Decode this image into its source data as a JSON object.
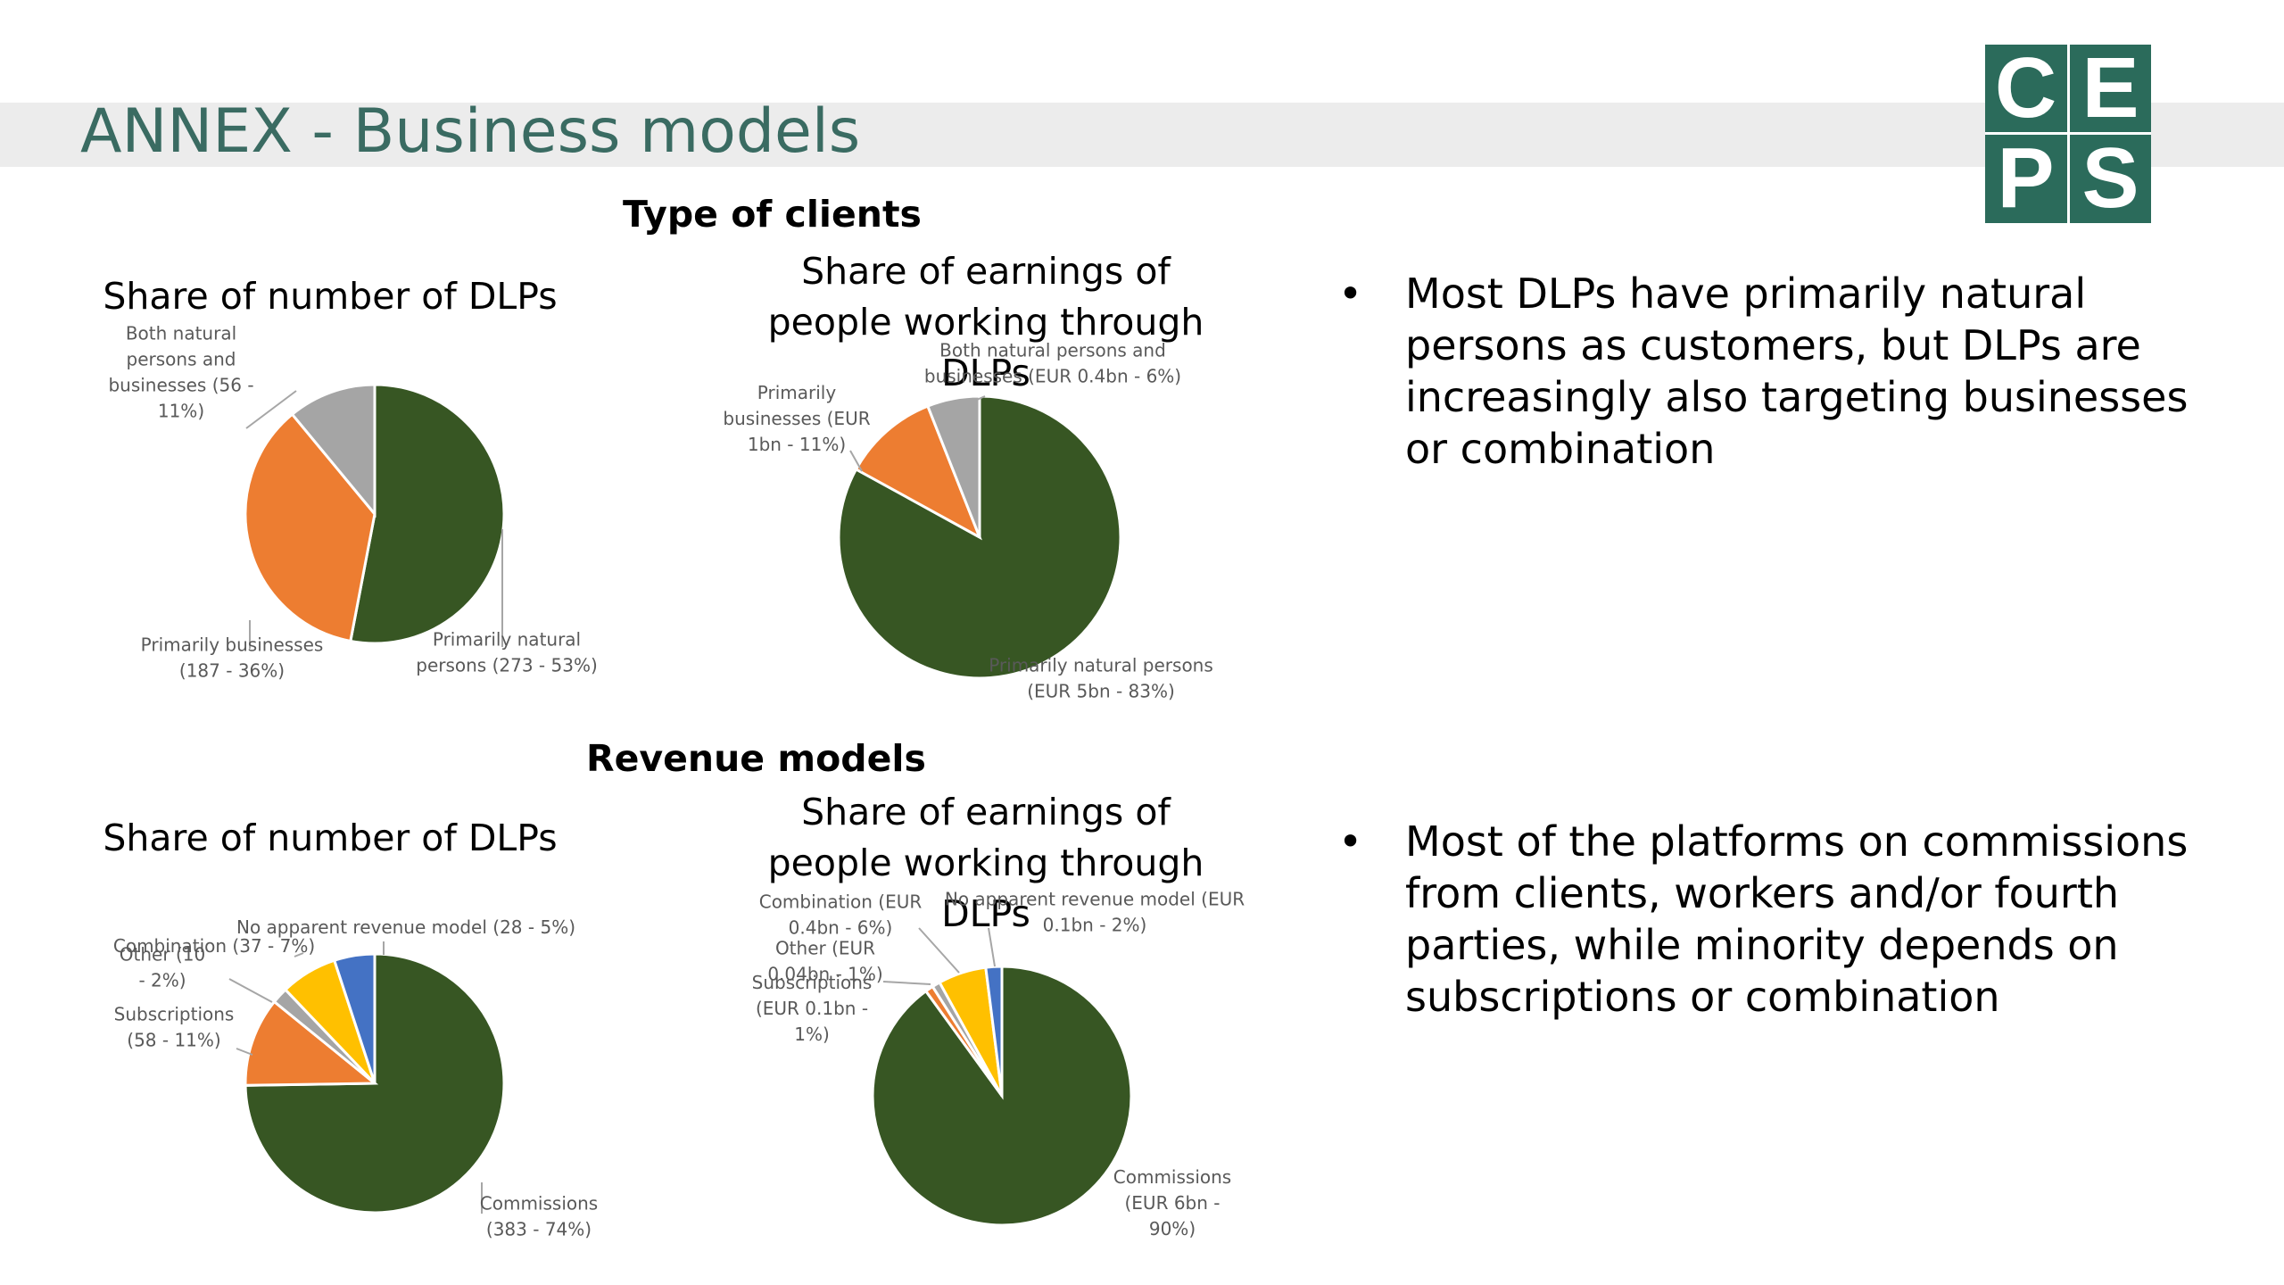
{
  "slide": {
    "title": "ANNEX - Business models"
  },
  "logo": {
    "cells": [
      "C",
      "E",
      "P",
      "S"
    ],
    "color": "#2b6b5b"
  },
  "sections": {
    "type_of_clients": "Type of clients",
    "revenue_models": "Revenue models"
  },
  "chart_titles": {
    "c1": "Share of number of DLPs",
    "c2": "Share of earnings of people working through DLPs",
    "c3": "Share of number of DLPs",
    "c4": "Share of earnings of people working through DLPs"
  },
  "bullets": {
    "b1": "Most DLPs have primarily natural persons as customers, but DLPs are increasingly also targeting businesses or combination",
    "b2": "Most of the platforms on commissions from clients, workers and/or fourth parties, while minority depends on subscriptions or combination"
  },
  "colors": {
    "green": "#375623",
    "orange": "#ed7d31",
    "gray": "#a5a5a5",
    "yellow": "#ffc000",
    "blue": "#4472c4",
    "label": "#595959"
  },
  "chart_data": [
    {
      "type": "pie",
      "title": "Share of number of DLPs",
      "slices": [
        {
          "name": "Primarily natural persons",
          "value": 273,
          "percent": 53,
          "color": "#375623",
          "label_lines": [
            "Primarily natural",
            "persons (273 - 53%)"
          ]
        },
        {
          "name": "Primarily businesses",
          "value": 187,
          "percent": 36,
          "color": "#ed7d31",
          "label_lines": [
            "Primarily businesses",
            "(187 - 36%)"
          ]
        },
        {
          "name": "Both natural persons and businesses",
          "value": 56,
          "percent": 11,
          "color": "#a5a5a5",
          "label_lines": [
            "Both natural",
            "persons and",
            "businesses (56 -",
            "11%)"
          ]
        }
      ]
    },
    {
      "type": "pie",
      "title": "Share of earnings of people working through DLPs",
      "slices": [
        {
          "name": "Primarily natural persons",
          "value": 5,
          "percent": 83,
          "color": "#375623",
          "label_lines": [
            "Primarily natural persons",
            "(EUR 5bn - 83%)"
          ]
        },
        {
          "name": "Primarily businesses",
          "value": 1,
          "percent": 11,
          "color": "#ed7d31",
          "label_lines": [
            "Primarily",
            "businesses (EUR",
            "1bn - 11%)"
          ]
        },
        {
          "name": "Both natural persons and businesses",
          "value": 0.4,
          "percent": 6,
          "color": "#a5a5a5",
          "label_lines": [
            "Both natural persons and",
            "businesses (EUR 0.4bn - 6%)"
          ]
        }
      ]
    },
    {
      "type": "pie",
      "title": "Share of number of DLPs",
      "slices": [
        {
          "name": "Commissions",
          "value": 383,
          "percent": 74,
          "color": "#375623",
          "label_lines": [
            "Commissions",
            "(383 - 74%)"
          ]
        },
        {
          "name": "Subscriptions",
          "value": 58,
          "percent": 11,
          "color": "#ed7d31",
          "label_lines": [
            "Subscriptions",
            "(58 - 11%)"
          ]
        },
        {
          "name": "Other",
          "value": 10,
          "percent": 2,
          "color": "#a5a5a5",
          "label_lines": [
            "Other (10",
            "- 2%)"
          ]
        },
        {
          "name": "Combination",
          "value": 37,
          "percent": 7,
          "color": "#ffc000",
          "label_lines": [
            "Combination (37 - 7%)"
          ]
        },
        {
          "name": "No apparent revenue model",
          "value": 28,
          "percent": 5,
          "color": "#4472c4",
          "label_lines": [
            "No apparent revenue model (28 - 5%)"
          ]
        }
      ]
    },
    {
      "type": "pie",
      "title": "Share of earnings of people working through DLPs",
      "slices": [
        {
          "name": "Commissions",
          "value": 6,
          "percent": 90,
          "color": "#375623",
          "label_lines": [
            "Commissions",
            "(EUR 6bn -",
            "90%)"
          ]
        },
        {
          "name": "Subscriptions",
          "value": 0.1,
          "percent": 1,
          "color": "#ed7d31",
          "label_lines": [
            "Subscriptions",
            "(EUR 0.1bn -",
            "1%)"
          ]
        },
        {
          "name": "Other",
          "value": 0.04,
          "percent": 1,
          "color": "#a5a5a5",
          "label_lines": [
            "Other (EUR",
            "0.04bn - 1%)"
          ]
        },
        {
          "name": "Combination",
          "value": 0.4,
          "percent": 6,
          "color": "#ffc000",
          "label_lines": [
            "Combination (EUR",
            "0.4bn - 6%)"
          ]
        },
        {
          "name": "No apparent revenue model",
          "value": 0.1,
          "percent": 2,
          "color": "#4472c4",
          "label_lines": [
            "No apparent revenue model (EUR",
            "0.1bn - 2%)"
          ]
        }
      ]
    }
  ]
}
